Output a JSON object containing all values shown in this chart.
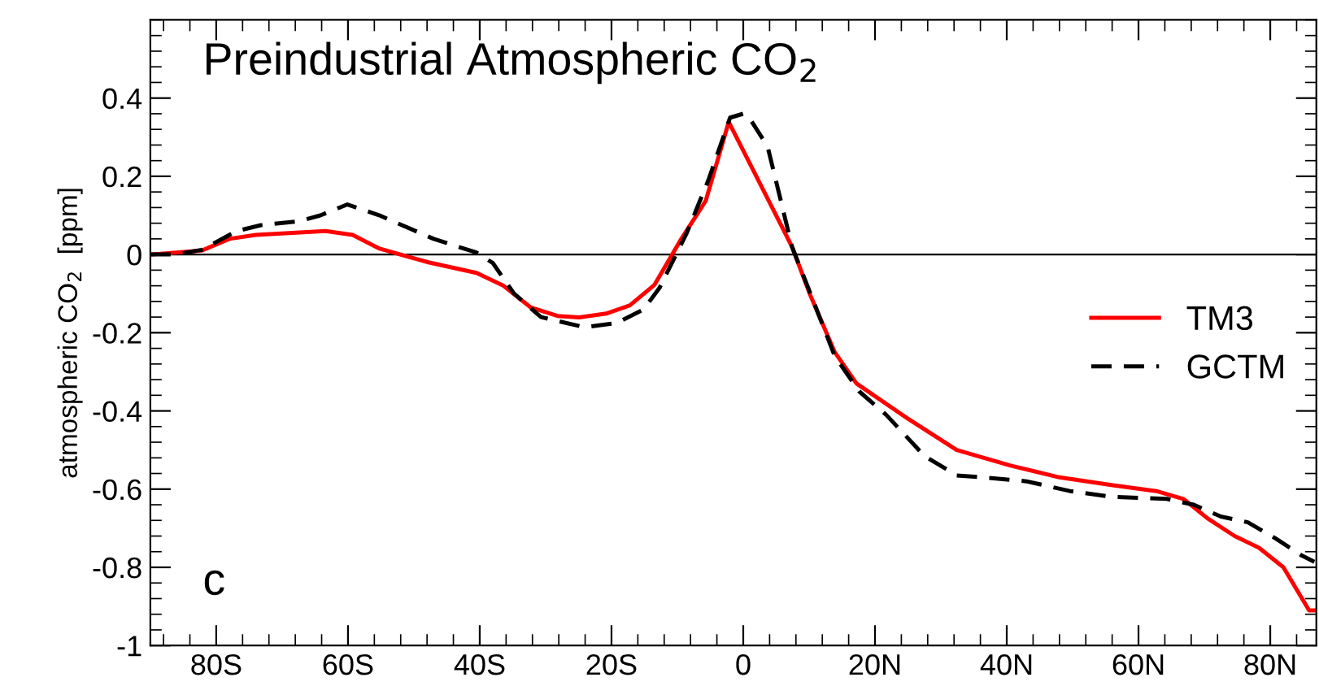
{
  "chart_data": {
    "type": "line",
    "title": "Preindustrial Atmospheric CO$_{2}$",
    "ylabel": "atmospheric CO$_{2}$  [ppm]",
    "annotations": [
      "c"
    ],
    "xlim": [
      -90,
      87
    ],
    "ylim": [
      -1,
      0.6
    ],
    "xticks": [
      {
        "value": -80,
        "label": "80S"
      },
      {
        "value": -60,
        "label": "60S"
      },
      {
        "value": -40,
        "label": "40S"
      },
      {
        "value": -20,
        "label": "20S"
      },
      0,
      {
        "value": 20,
        "label": "20N"
      },
      {
        "value": 40,
        "label": "40N"
      },
      {
        "value": 60,
        "label": "60N"
      },
      {
        "value": 80,
        "label": "80N"
      }
    ],
    "yticks": [
      -1,
      -0.8,
      -0.6,
      -0.4,
      -0.2,
      0,
      0.2,
      0.4
    ],
    "ref_lines": [
      {
        "axis": "y",
        "value": 0,
        "color": "#000000"
      }
    ],
    "grid": false,
    "legend": "right",
    "series": [
      {
        "name": "TM3",
        "color": "#ff0000",
        "line_style": "solid",
        "x": [
          -90,
          -82.2,
          -78,
          -74,
          -63.4,
          -59.3,
          -55.2,
          -47.8,
          -40.5,
          -36.4,
          -32.3,
          -28.2,
          -24.9,
          -20.8,
          -17.2,
          -13.5,
          -9.4,
          -5.7,
          -2.2,
          7.4,
          10.2,
          13.9,
          17.2,
          25,
          32.4,
          40.6,
          48,
          56.1,
          62.7,
          66.8,
          70.5,
          74.6,
          78.3,
          82,
          85.9,
          87
        ],
        "values": [
          0,
          0.01,
          0.04,
          0.05,
          0.06,
          0.05,
          0.015,
          -0.02,
          -0.047,
          -0.08,
          -0.135,
          -0.157,
          -0.161,
          -0.151,
          -0.13,
          -0.078,
          0.04,
          0.137,
          0.339,
          0.02,
          -0.105,
          -0.25,
          -0.33,
          -0.42,
          -0.5,
          -0.54,
          -0.57,
          -0.59,
          -0.605,
          -0.625,
          -0.675,
          -0.72,
          -0.75,
          -0.8,
          -0.91,
          -0.91
        ]
      },
      {
        "name": "GCTM",
        "color": "#000000",
        "line_style": "dashed",
        "x": [
          -90,
          -86.3,
          -82.2,
          -76.9,
          -73.2,
          -67.5,
          -64.2,
          -60.1,
          -55.2,
          -47,
          -40.5,
          -38,
          -34.8,
          -30.7,
          -24.1,
          -19.2,
          -15.1,
          -12.7,
          -8.6,
          -5.3,
          -2,
          0,
          0.8,
          3.7,
          7.4,
          10.2,
          13.9,
          17.6,
          21.7,
          27.5,
          32.4,
          36.5,
          43,
          49.6,
          56.1,
          64.3,
          68.4,
          72.5,
          76.6,
          80.7,
          84.8,
          86.7
        ],
        "values": [
          0,
          0,
          0.012,
          0.06,
          0.075,
          0.085,
          0.1,
          0.128,
          0.1,
          0.04,
          0.005,
          -0.022,
          -0.1,
          -0.16,
          -0.186,
          -0.175,
          -0.14,
          -0.085,
          0.054,
          0.19,
          0.35,
          0.36,
          0.353,
          0.276,
          0.02,
          -0.1,
          -0.26,
          -0.35,
          -0.41,
          -0.515,
          -0.565,
          -0.57,
          -0.58,
          -0.605,
          -0.62,
          -0.625,
          -0.64,
          -0.67,
          -0.685,
          -0.725,
          -0.77,
          -0.786
        ]
      }
    ]
  }
}
